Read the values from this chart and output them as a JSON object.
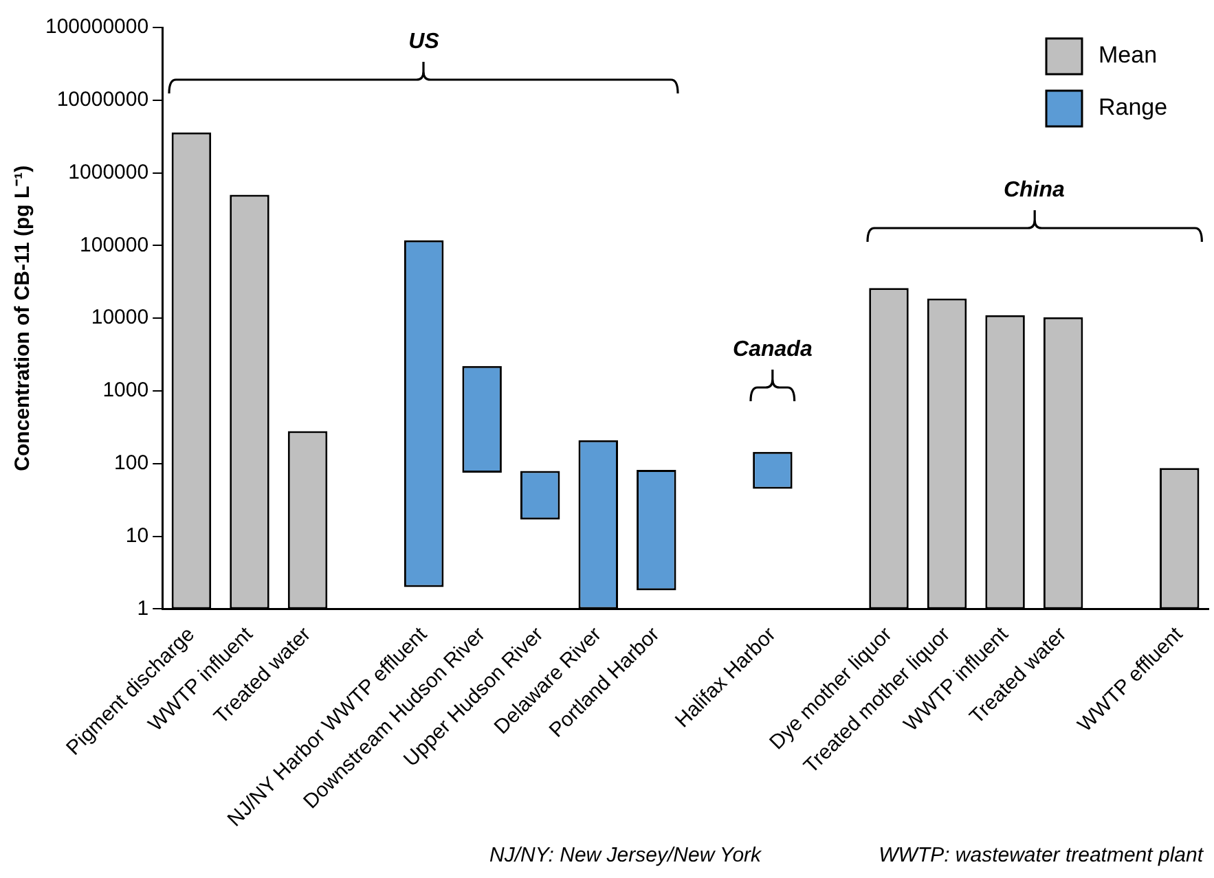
{
  "chart_data": {
    "type": "bar",
    "ylabel": "Concentration of CB-11 (pg L⁻¹)",
    "categories": [
      "Pigment discharge",
      "WWTP influent",
      "Treated water",
      null,
      "NJ/NY Harbor WWTP effluent",
      "Downstream Hudson River",
      "Upper Hudson River",
      "Delaware River",
      "Portland Harbor",
      null,
      "Halifax Harbor",
      null,
      "Dye mother liquor",
      "Treated mother liquor",
      "WWTP influent",
      "Treated water",
      null,
      "WWTP effluent"
    ],
    "series": [
      {
        "name": "Mean",
        "color": "#bfbfbf",
        "values": [
          3600000,
          500000,
          280,
          null,
          null,
          null,
          null,
          null,
          null,
          null,
          null,
          null,
          26000,
          18700,
          11000,
          10300,
          null,
          87
        ]
      },
      {
        "name": "Range",
        "color": "#5b9bd5",
        "values": [
          null,
          null,
          null,
          null,
          118000,
          2125,
          62,
          209,
          80,
          null,
          100,
          null,
          null,
          null,
          null,
          null,
          null,
          null
        ],
        "base": [
          null,
          null,
          null,
          null,
          2,
          75,
          17,
          1,
          1.8,
          null,
          45,
          null,
          null,
          null,
          null,
          null,
          null,
          null
        ]
      }
    ],
    "log": true,
    "ylim": [
      1,
      100000000
    ],
    "yticks": [
      1,
      10,
      100,
      1000,
      10000,
      100000,
      1000000,
      10000000,
      100000000
    ],
    "legend": "top right",
    "grid": false,
    "annotations": [
      "US",
      "Canada",
      "China",
      "NJ/NY: New Jersey/New York",
      "WWTP: wastewater treatment plant"
    ]
  }
}
